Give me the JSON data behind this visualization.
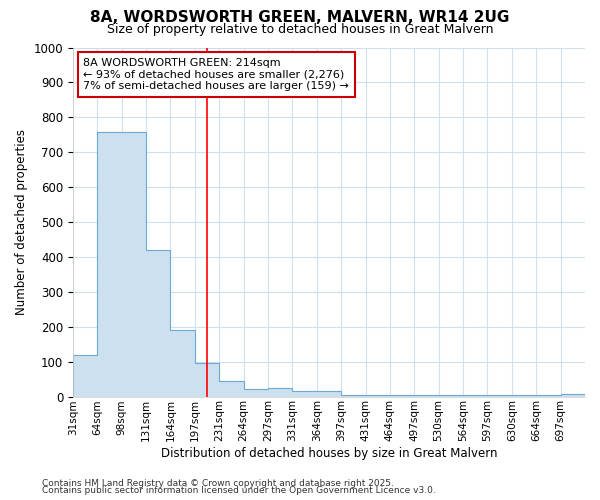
{
  "title1": "8A, WORDSWORTH GREEN, MALVERN, WR14 2UG",
  "title2": "Size of property relative to detached houses in Great Malvern",
  "xlabel": "Distribution of detached houses by size in Great Malvern",
  "ylabel": "Number of detached properties",
  "bin_labels": [
    "31sqm",
    "64sqm",
    "98sqm",
    "131sqm",
    "164sqm",
    "197sqm",
    "231sqm",
    "264sqm",
    "297sqm",
    "331sqm",
    "364sqm",
    "397sqm",
    "431sqm",
    "464sqm",
    "497sqm",
    "530sqm",
    "564sqm",
    "597sqm",
    "630sqm",
    "664sqm",
    "697sqm"
  ],
  "bin_values": [
    120,
    757,
    757,
    420,
    190,
    97,
    45,
    22,
    25,
    15,
    15,
    3,
    3,
    3,
    3,
    3,
    3,
    3,
    3,
    3,
    8
  ],
  "bar_color": "#cde0f0",
  "bar_edge_color": "#6aaad4",
  "background_color": "#ffffff",
  "grid_color": "#d0dff0",
  "red_line_x": 5.5,
  "annotation_text": "8A WORDSWORTH GREEN: 214sqm\n← 93% of detached houses are smaller (2,276)\n7% of semi-detached houses are larger (159) →",
  "annotation_box_color": "#ffffff",
  "annotation_box_edge": "#cc0000",
  "ylim": [
    0,
    1000
  ],
  "yticks": [
    0,
    100,
    200,
    300,
    400,
    500,
    600,
    700,
    800,
    900,
    1000
  ],
  "footer1": "Contains HM Land Registry data © Crown copyright and database right 2025.",
  "footer2": "Contains public sector information licensed under the Open Government Licence v3.0."
}
